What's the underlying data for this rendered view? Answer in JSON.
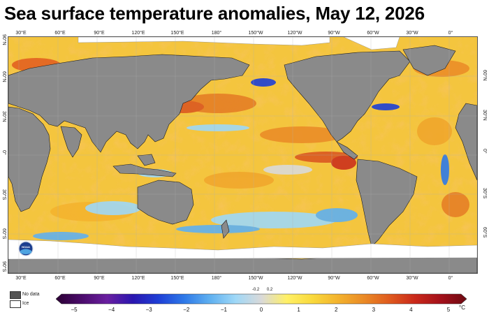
{
  "title": "Sea surface temperature anomalies, May 12, 2026",
  "longitude_labels_top": [
    "30°E",
    "60°E",
    "90°E",
    "120°E",
    "150°E",
    "180°",
    "150°W",
    "120°W",
    "90°W",
    "60°W",
    "30°W",
    "0°"
  ],
  "longitude_labels_bottom": [
    "30°E",
    "60°E",
    "90°E",
    "120°E",
    "150°E",
    "180°",
    "150°W",
    "120°W",
    "90°W",
    "60°W",
    "30°W",
    "0°"
  ],
  "latitude_labels": [
    "90°N",
    "60°N",
    "30°N",
    "0°",
    "30°S",
    "60°S",
    "90°S"
  ],
  "latitude_labels_right": [
    "60°N",
    "30°N",
    "0°",
    "30°S",
    "60°S"
  ],
  "legend": {
    "no_data": "No data",
    "ice": "Ice"
  },
  "colors": {
    "no_data": "#555555",
    "ice": "#ffffff",
    "land": "#8a8a8a",
    "neutral": "#d9d9d9"
  },
  "logo_text": "NOAA",
  "colorbar": {
    "unit": "°C",
    "ticks": [
      "−5",
      "−4",
      "−3",
      "−2",
      "−1",
      "0",
      "1",
      "2",
      "3",
      "4",
      "5"
    ],
    "neutral_band": [
      "-0.2",
      "0.2"
    ],
    "stops": [
      "#2b0033",
      "#4b0c6b",
      "#6a1fa0",
      "#2a16b0",
      "#1e3fd6",
      "#2e79e8",
      "#5fb0f0",
      "#9fd8f7",
      "#d9d9d9",
      "#fff066",
      "#f9d93c",
      "#f3b22d",
      "#ea8a26",
      "#df5a1e",
      "#c9281a",
      "#a3101a",
      "#6e0a12"
    ]
  }
}
